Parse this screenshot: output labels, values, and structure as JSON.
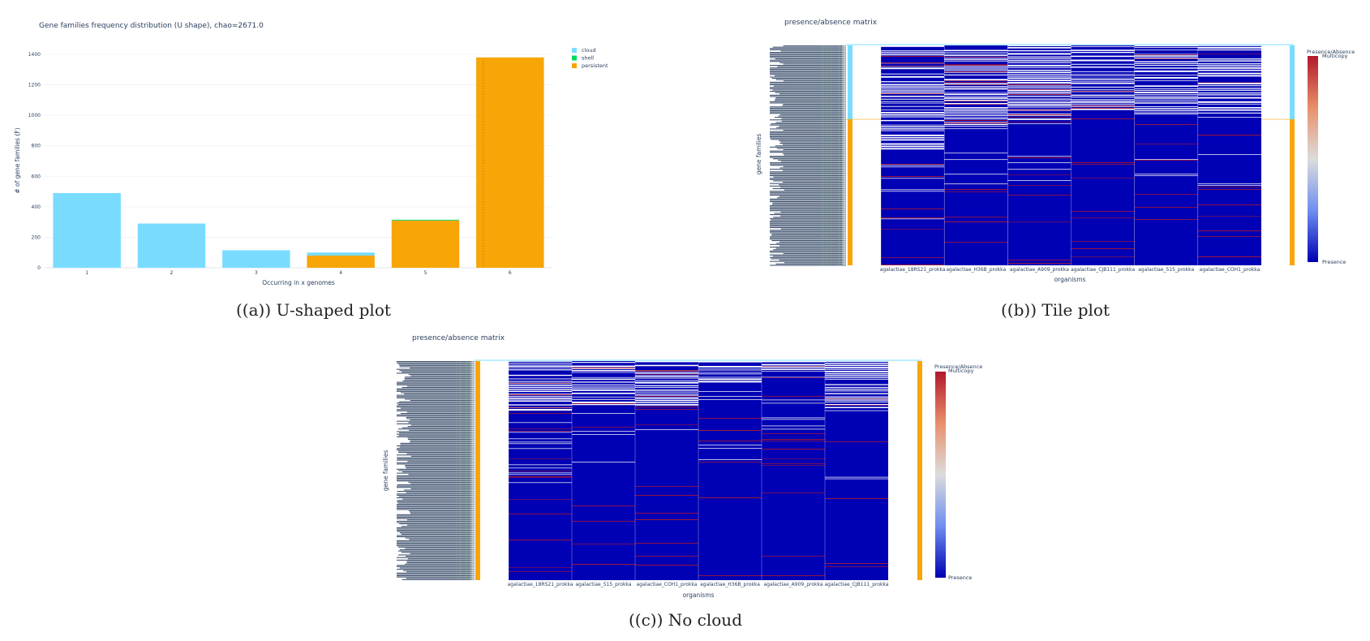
{
  "captions": [
    "((a)) U-shaped plot",
    "((b)) Tile plot",
    "((c)) No cloud"
  ],
  "colors": {
    "cloud": "#79dcff",
    "shell": "#00d860",
    "persistent": "#f7a507",
    "tile_base": "#0000b4",
    "multicopy": "#b2182b",
    "presence": "#0d0d8c",
    "row_labels": "#2a3f5f"
  },
  "chart_data": [
    {
      "type": "bar",
      "title": "Gene families frequency distribution (U shape), chao=2671.0",
      "xlabel": "Occurring in x genomes",
      "ylabel": "# of gene families (F)",
      "categories": [
        "1",
        "2",
        "3",
        "4",
        "5",
        "6"
      ],
      "ylim": [
        0,
        1400
      ],
      "yticks": [
        "0",
        "200",
        "400",
        "600",
        "800",
        "1000",
        "1200",
        "1400"
      ],
      "legend_position": "top-right",
      "series": [
        {
          "name": "cloud",
          "values": [
            490,
            290,
            115,
            20,
            0,
            0
          ]
        },
        {
          "name": "shell",
          "values": [
            0,
            0,
            0,
            0,
            5,
            0
          ]
        },
        {
          "name": "persistent",
          "values": [
            0,
            0,
            0,
            80,
            310,
            1380
          ]
        }
      ]
    },
    {
      "type": "heatmap",
      "title": "presence/absence matrix",
      "xlabel": "organisms",
      "ylabel": "gene families",
      "columns": [
        "agalactiae_18RS21_prokka",
        "agalactiae_H36B_prokka",
        "agalactiae_A909_prokka",
        "agalactiae_CJB111_prokka",
        "agalactiae_515_prokka",
        "agalactiae_COH1_prokka"
      ],
      "colorbar": {
        "title": "Presence/Absence",
        "max_label": "Multicopy",
        "min_label": "Presence"
      }
    },
    {
      "type": "heatmap",
      "title": "presence/absence matrix",
      "xlabel": "organisms",
      "ylabel": "gene families",
      "columns": [
        "agalactiae_18RS21_prokka",
        "agalactiae_515_prokka",
        "agalactiae_COH1_prokka",
        "agalactiae_H36B_prokka",
        "agalactiae_A909_prokka",
        "agalactiae_CJB111_prokka"
      ],
      "colorbar": {
        "title": "Presence/Absence",
        "max_label": "Multicopy",
        "min_label": "Presence"
      }
    }
  ]
}
